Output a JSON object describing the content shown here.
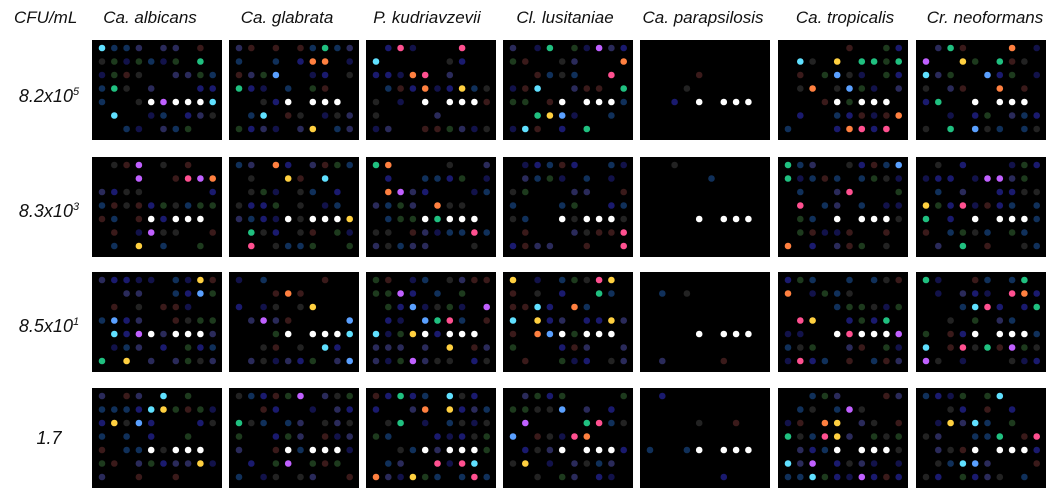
{
  "header": {
    "corner": "CFU/mL"
  },
  "columns": [
    "Ca. albicans",
    "Ca. glabrata",
    "P. kudriavzevii",
    "Cl. lusitaniae",
    "Ca. parapsilosis",
    "Ca. tropicalis",
    "Cr. neoformans"
  ],
  "rows": [
    {
      "base": "8.2x10",
      "exponent": "5"
    },
    {
      "base": "8.3x10",
      "exponent": "3"
    },
    {
      "base": "8.5x10",
      "exponent": "1"
    },
    {
      "base": "1.7",
      "exponent": null
    }
  ]
}
